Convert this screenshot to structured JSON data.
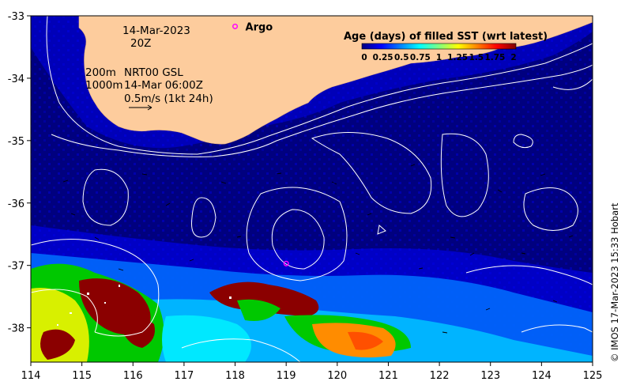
{
  "map": {
    "date": "14-Mar-2023",
    "time": "20Z",
    "depth_labels": [
      "200m",
      "1000m"
    ],
    "product": "NRT00 GSL",
    "product_time": "14-Mar 06:00Z",
    "vector_scale": "0.5m/s (1kt 24h)",
    "argo_label": "Argo",
    "credit": "© IMOS 17-Mar-2023 15:33 Hobart",
    "lon_ticks": [
      "114",
      "115",
      "116",
      "117",
      "118",
      "119",
      "120",
      "121",
      "122",
      "123",
      "124",
      "125"
    ],
    "lat_ticks": [
      "-33",
      "-34",
      "-35",
      "-36",
      "-37",
      "-38"
    ],
    "lon_range": [
      114,
      125
    ],
    "lat_range": [
      -38.55,
      -33
    ],
    "argo_float": {
      "lon": 118.0,
      "lat": -33.17
    },
    "argo_float_2": {
      "lon": 119.0,
      "lat": -36.97
    },
    "colors": {
      "land": "#fdcc9d",
      "ocean_deep": "#00007f",
      "contour": "#ffffff",
      "argo_marker": "#ff00ff"
    }
  },
  "colorbar": {
    "title": "Age (days) of filled SST (wrt latest)",
    "tick_labels": [
      "0",
      "0.25",
      "0.5",
      "0.75",
      "1",
      "1.25",
      "1.5",
      "1.75",
      "2"
    ],
    "range": [
      0,
      2
    ],
    "colormap": [
      "#00007f",
      "#0000ff",
      "#0080ff",
      "#00ffff",
      "#80ff80",
      "#ffff00",
      "#ff8000",
      "#ff0000",
      "#7f0000"
    ]
  }
}
